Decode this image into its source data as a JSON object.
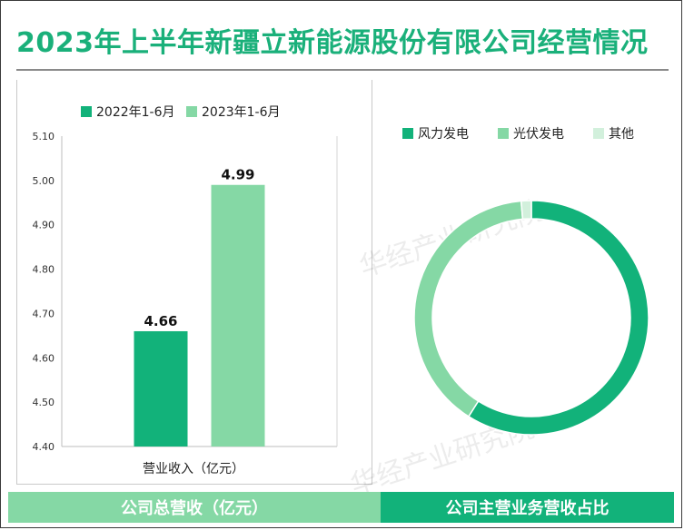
{
  "title": "2023年上半年新疆立新能源股份有限公司经营情况",
  "watermark": "华经产业研究院",
  "colors": {
    "title": "#1ab07a",
    "dark_green": "#12b27a",
    "light_green": "#85d8a5",
    "pale_green": "#d2f0dc"
  },
  "footer": {
    "left_label": "公司总营收（亿元）",
    "right_label": "公司主营业务营收占比"
  },
  "chart_data": [
    {
      "type": "bar",
      "categories": [
        "营业收入（亿元）"
      ],
      "series": [
        {
          "name": "2022年1-6月",
          "values": [
            4.66
          ],
          "color": "#12b27a"
        },
        {
          "name": "2023年1-6月",
          "values": [
            4.99
          ],
          "color": "#85d8a5"
        }
      ],
      "ylim": [
        4.4,
        5.1
      ],
      "yticks": [
        "5.10",
        "5.00",
        "4.90",
        "4.80",
        "4.70",
        "4.60",
        "4.50",
        "4.40"
      ],
      "data_labels": [
        "4.66",
        "4.99"
      ],
      "legend_position": "top-left"
    },
    {
      "type": "pie",
      "donut": true,
      "labels": [
        "风力发电",
        "光伏发电",
        "其他"
      ],
      "values": [
        59.0,
        39.6,
        1.4
      ],
      "colors": [
        "#12b27a",
        "#85d8a5",
        "#d2f0dc"
      ],
      "legend_position": "top"
    }
  ]
}
